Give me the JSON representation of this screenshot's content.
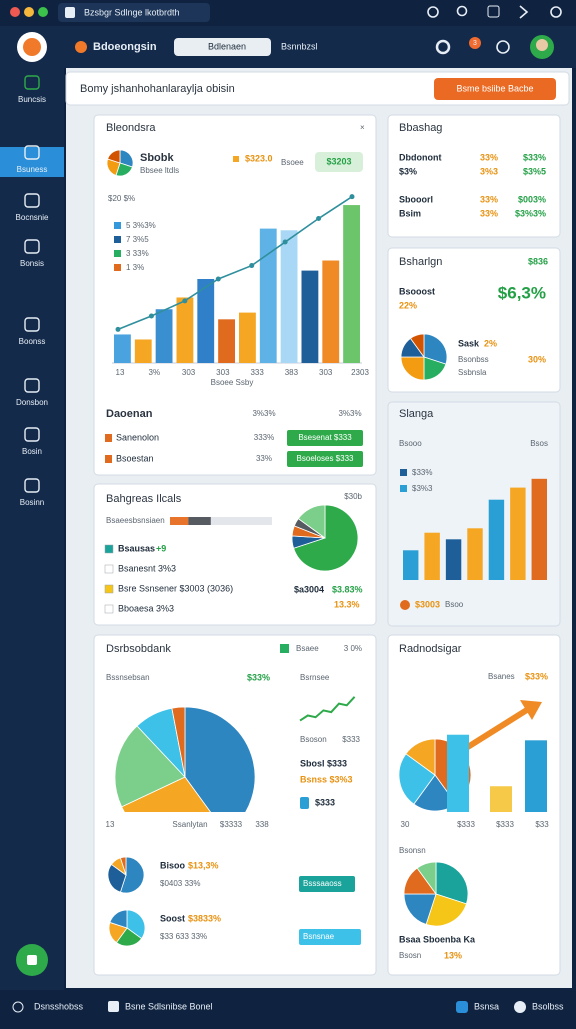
{
  "window": {
    "tab": "Bzsbgr Sdlnge lkotbrdth"
  },
  "header": {
    "app_name": "Bdoeongsin",
    "search": "Bdlenaen",
    "link": "Bsnnbzsl",
    "notifications": "3"
  },
  "sidebar": [
    "Buncsis",
    "Bsuness",
    "Bocnsnie",
    "Bonsis",
    "Boonss",
    "Donsbon",
    "Bosin",
    "Bosinn"
  ],
  "banner": {
    "title": "Bomy jshanhohanlaraylja obisin",
    "button": "Bsme bsiibe  Bacbe"
  },
  "overview": {
    "title": "Bleondsra",
    "name": "Sbobk",
    "subtitle": "Bbsee ltdls",
    "amount": "$323.0",
    "amount_label": "Bsoee",
    "badge": "$3203",
    "icon_pie": {
      "values": [
        30,
        25,
        25,
        20
      ],
      "colors": [
        "#2e86c1",
        "#27ae60",
        "#f39c12",
        "#d35400"
      ]
    },
    "chart": {
      "type": "bar",
      "axis_label": "$20 $%",
      "values": [
        17,
        14,
        32,
        39,
        50,
        26,
        30,
        80,
        79,
        55,
        61,
        94
      ],
      "colors": [
        "#4aa3df",
        "#f5a623",
        "#3a8fd0",
        "#f5a623",
        "#2f80c8",
        "#e06b1f",
        "#f5a623",
        "#5fb2e6",
        "#a8d8f5",
        "#1f5f99",
        "#f08a24",
        "#6cc46b"
      ],
      "ylim": [
        0,
        100
      ],
      "x_labels": [
        "13",
        "3%",
        "303",
        "303",
        "333",
        "383",
        "303",
        "2303"
      ],
      "x_title": "Bsoee Ssby",
      "legend": [
        {
          "label": "5  3%3%",
          "color": "#3498db"
        },
        {
          "label": "7  3%5",
          "color": "#1f5f99"
        },
        {
          "label": "3  33%",
          "color": "#27ae60"
        },
        {
          "label": "1  3%",
          "color": "#e06b1f"
        }
      ],
      "line": {
        "color": "#2f8f9d",
        "values": [
          20,
          28,
          37,
          50,
          58,
          72,
          86,
          99
        ]
      }
    },
    "footer_title": "Daoenan",
    "footer_col1": "3%3%",
    "footer_col2": "3%3%",
    "rows": [
      {
        "label": "Sanenolon",
        "value": "333%",
        "button": "Bsesenat $333"
      },
      {
        "label": "Bsoestan",
        "value": "33%",
        "button": "Bsoeloses $333"
      }
    ]
  },
  "balance": {
    "title": "Bbashag",
    "rows": [
      [
        "Dbdonont",
        "33%",
        "$33%"
      ],
      [
        "$3%",
        "3%3",
        "$3%5"
      ],
      [
        "Sbooorl",
        "33%",
        "$003%"
      ],
      [
        "Bsim",
        "33%",
        "$3%3%"
      ]
    ]
  },
  "sharing": {
    "title": "Bsharlgn",
    "badge": "$836",
    "name": "Bsooost",
    "big_value": "$6,3%",
    "change": "22%",
    "pie": {
      "values": [
        30,
        20,
        25,
        15,
        10
      ],
      "colors": [
        "#2e86c1",
        "#27ae60",
        "#f39c12",
        "#1f5f99",
        "#d35400"
      ]
    },
    "item1": "Sask",
    "item1_value": "2%",
    "item2": "Bsonbss",
    "item2_value": "30%",
    "item3": "Ssbnsla"
  },
  "trend": {
    "title": "Slanga",
    "label_left": "Bsooo",
    "label_right": "Bsos",
    "legend": [
      {
        "label": "$33%",
        "color": "#1f5f99"
      },
      {
        "label": "$3%3",
        "color": "#2a9fd6"
      }
    ],
    "values": [
      27,
      43,
      37,
      47,
      73,
      84,
      92
    ],
    "colors": [
      "#2a9fd6",
      "#f5a623",
      "#1f5f99",
      "#f5a623",
      "#2a9fd6",
      "#f5a623",
      "#e06b1f"
    ],
    "ylim": [
      0,
      100
    ],
    "footer_value": "$3003",
    "footer_label": "Bsoo"
  },
  "totals": {
    "title": "Bahgreas Ilcals",
    "badge": "$30b",
    "progress_label": "Bsaeesbsnsiaen",
    "progress": {
      "values": [
        18,
        22
      ],
      "colors": [
        "#e8742c",
        "#555b61"
      ],
      "xlim": [
        0,
        100
      ]
    },
    "legend": [
      {
        "label": "Bsausas",
        "color": "#1aa39a",
        "extra": "+9"
      },
      {
        "label": "Bsanesnt 3%3",
        "color": "#ffffff",
        "extra": ""
      },
      {
        "label": "Bsre Ssnsener $3003 (3036)",
        "color": "#f5c518",
        "extra": ""
      },
      {
        "label": "Bboaesa 3%3",
        "color": "#ffffff",
        "extra": ""
      }
    ],
    "pie": {
      "values": [
        70,
        6,
        5,
        4,
        15
      ],
      "colors": [
        "#2eaa4a",
        "#1f5f99",
        "#e06b1f",
        "#555b61",
        "#7ccf8a"
      ]
    },
    "value1": "$a3004",
    "value2": "$3.83%",
    "value3": "13.3%"
  },
  "dashboard": {
    "title": "Dsrbsobdank",
    "legend": "Bsaee",
    "legend_value": "3 0%",
    "legend_color": "#27ae60",
    "label": "Bssnsebsan",
    "label_value": "$33%",
    "pie": {
      "values": [
        40,
        28,
        20,
        9,
        3
      ],
      "colors": [
        "#2e86c1",
        "#f5a623",
        "#7ccf8a",
        "#3ec1e8",
        "#e06b1f"
      ]
    },
    "x_labels": [
      "13",
      "Ssanlytan",
      "$3333",
      "338"
    ],
    "side_label": "Bsrnsee",
    "spark": {
      "values": [
        10,
        25,
        20,
        40,
        35,
        60,
        55,
        80
      ],
      "ylim": [
        0,
        100
      ],
      "color": "#2eaa4a"
    },
    "side_row1": "Bsoson",
    "side_row1_value": "$333",
    "side_row2": "Sbosl $333",
    "side_row3": "Bsnss $3%3",
    "side_row4": "$333",
    "small": [
      {
        "name": "Bisoo",
        "value": "$13,3%",
        "detail": "$0403 33%",
        "button": "Bsssaaoss",
        "button_color": "#1aa39a",
        "pie": {
          "values": [
            55,
            30,
            10,
            5
          ],
          "colors": [
            "#2e86c1",
            "#1f5f99",
            "#f5a623",
            "#e06b1f"
          ]
        }
      },
      {
        "name": "Soost",
        "value": "$3833%",
        "detail": "$33 633 33%",
        "button": "Bsnsnae",
        "button_color": "#3ec1e8",
        "pie": {
          "values": [
            35,
            25,
            20,
            20
          ],
          "colors": [
            "#3ec1e8",
            "#2eaa4a",
            "#f5a623",
            "#2e86c1"
          ]
        }
      }
    ]
  },
  "radar": {
    "title": "Radnodsigar",
    "label": "Bsanes",
    "label_value": "$33%",
    "pie": {
      "values": [
        40,
        20,
        25,
        15
      ],
      "colors": [
        "#e06b1f",
        "#2e86c1",
        "#3ec1e8",
        "#f5a623"
      ]
    },
    "bars": {
      "values": [
        69,
        23,
        64
      ],
      "colors": [
        "#3ec1e8",
        "#f7c948",
        "#2a9fd6"
      ],
      "ylim": [
        0,
        100
      ]
    },
    "x_labels": [
      "30",
      "$333",
      "$333",
      "$33"
    ],
    "lower_title": "Bsonsn",
    "lower_pie": {
      "values": [
        30,
        25,
        20,
        15,
        10
      ],
      "colors": [
        "#1aa39a",
        "#f5c518",
        "#2e86c1",
        "#e06b1f",
        "#7ccf8a"
      ]
    },
    "lower_name": "Bsaa Sboenba Ka",
    "lower_label": "Bsosn",
    "lower_value": "13%"
  },
  "status": {
    "left": "Dsnsshobss",
    "mid": "Bsne Sdlsnibse Bonel",
    "right1": "Bsnsa",
    "right2": "Bsolbss"
  }
}
